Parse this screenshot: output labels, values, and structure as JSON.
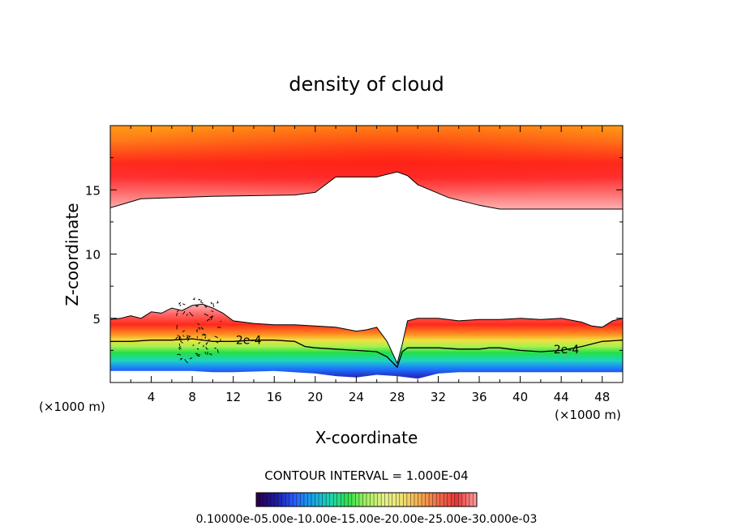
{
  "chart_data": {
    "type": "heatmap",
    "title": "density of cloud",
    "xlabel": "X-coordinate",
    "ylabel": "Z-coordinate",
    "x_unit_left": "(×1000 m)",
    "x_unit_right": "(×1000 m)",
    "xlim": [
      0,
      50
    ],
    "ylim": [
      0,
      20
    ],
    "x_ticks": [
      4,
      8,
      12,
      16,
      20,
      24,
      28,
      32,
      36,
      40,
      44,
      48
    ],
    "y_ticks": [
      5,
      10,
      15
    ],
    "contour_interval_text": "CONTOUR INTERVAL = 1.000E-04",
    "contour_labels": [
      {
        "text": "2e-4",
        "x": 13.5,
        "y": 3.3
      },
      {
        "text": "2e-4",
        "x": 44.5,
        "y": 2.6
      }
    ],
    "colorbar_label_text": "0.10000e-05.00e-10.00e-15.00e-20.00e-25.00e-30.000e-03",
    "colorbar_colors": [
      "#2a004a",
      "#1a1aa8",
      "#2a5cff",
      "#14a6e8",
      "#1ed3b0",
      "#2ee24a",
      "#a8f060",
      "#e6f28a",
      "#f0e070",
      "#f5a84e",
      "#f06a4a",
      "#e83838",
      "#ff9898"
    ],
    "upper_layer": {
      "z_top": 20,
      "base_x": [
        0,
        3,
        10,
        18,
        20,
        21,
        22,
        26,
        27,
        28,
        29,
        30,
        33,
        36,
        38,
        40,
        42,
        46,
        50
      ],
      "base_z": [
        13.6,
        14.3,
        14.5,
        14.6,
        14.8,
        15.4,
        16.0,
        16.0,
        16.2,
        16.4,
        16.1,
        15.4,
        14.4,
        13.8,
        13.5,
        13.5,
        13.5,
        13.5,
        13.5
      ]
    },
    "lower_layer": {
      "top_x": [
        0,
        1,
        2,
        3,
        4,
        5,
        6,
        7,
        8,
        9,
        10,
        11,
        12,
        14,
        16,
        18,
        20,
        22,
        24,
        25,
        26,
        27,
        28,
        28.5,
        29,
        30,
        32,
        34,
        36,
        38,
        40,
        42,
        44,
        46,
        47,
        48,
        49,
        50
      ],
      "top_z": [
        4.9,
        5.0,
        5.2,
        5.0,
        5.5,
        5.4,
        5.8,
        5.6,
        6.0,
        6.1,
        5.8,
        5.4,
        4.8,
        4.6,
        4.5,
        4.5,
        4.4,
        4.3,
        4.0,
        4.1,
        4.3,
        3.2,
        1.5,
        3.0,
        4.8,
        5.0,
        5.0,
        4.8,
        4.9,
        4.9,
        5.0,
        4.9,
        5.0,
        4.7,
        4.4,
        4.3,
        4.8,
        5.0
      ],
      "contour_2e4_x": [
        0,
        2,
        4,
        6,
        8,
        10,
        12,
        14,
        16,
        18,
        19,
        20,
        22,
        24,
        26,
        27,
        28,
        28.5,
        29,
        30,
        32,
        34,
        36,
        37,
        38,
        40,
        42,
        44,
        46,
        48,
        50
      ],
      "contour_2e4_z": [
        3.2,
        3.2,
        3.3,
        3.3,
        3.4,
        3.2,
        3.2,
        3.3,
        3.3,
        3.2,
        2.8,
        2.7,
        2.6,
        2.5,
        2.4,
        2.0,
        1.2,
        2.4,
        2.7,
        2.7,
        2.7,
        2.6,
        2.6,
        2.7,
        2.7,
        2.5,
        2.4,
        2.5,
        2.8,
        3.2,
        3.3
      ],
      "bottom_x": [
        0,
        4,
        8,
        10,
        12,
        16,
        20,
        22,
        24,
        26,
        28,
        30,
        32,
        34,
        36,
        40,
        44,
        48,
        50
      ],
      "bottom_z": [
        0.9,
        0.9,
        0.9,
        0.8,
        0.8,
        0.9,
        0.7,
        0.5,
        0.4,
        0.6,
        0.5,
        0.3,
        0.7,
        0.8,
        0.8,
        0.8,
        0.8,
        0.8,
        0.8
      ]
    }
  }
}
